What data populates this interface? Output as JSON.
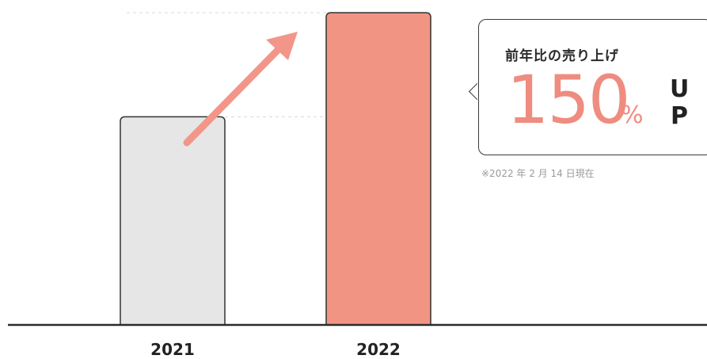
{
  "chart_data": {
    "type": "bar",
    "categories": [
      "2021",
      "2022"
    ],
    "values": [
      100,
      150
    ],
    "ylim": [
      0,
      150
    ],
    "grid": false,
    "colors": [
      "#e6e6e6",
      "#f29484"
    ],
    "edge_color": "#333333"
  },
  "callout": {
    "title": "前年比の売り上げ",
    "value": "150",
    "unit": "%",
    "suffix": "UP",
    "note": "※2022 年 2 月 14 日現在"
  },
  "arrow": {
    "icon": "up-right-arrow-icon",
    "color": "#f2968a"
  }
}
